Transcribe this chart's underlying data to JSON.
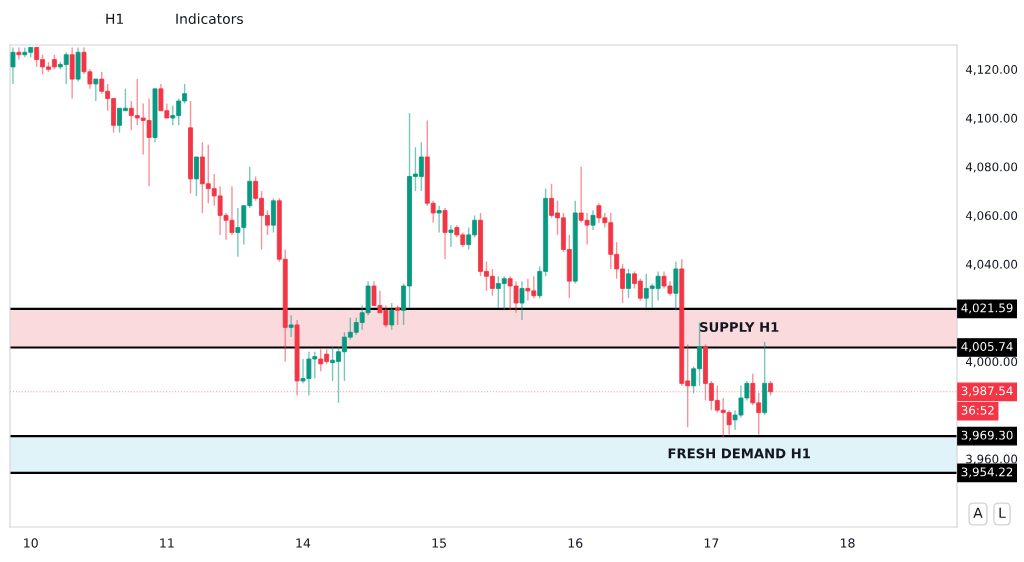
{
  "chart_data": {
    "type": "candlestick",
    "categories": [
      null,
      null,
      null,
      "10",
      null,
      null,
      null,
      null,
      null,
      null,
      null,
      null,
      null,
      null,
      null,
      null,
      null,
      null,
      null,
      null,
      null,
      null,
      null,
      null,
      null,
      null,
      "11",
      null,
      null,
      null,
      null,
      null,
      null,
      null,
      null,
      null,
      null,
      null,
      null,
      null,
      null,
      null,
      null,
      null,
      null,
      null,
      null,
      null,
      null,
      "14",
      null,
      null,
      null,
      null,
      null,
      null,
      null,
      null,
      null,
      null,
      null,
      null,
      null,
      null,
      null,
      null,
      null,
      null,
      null,
      null,
      null,
      null,
      "15",
      null,
      null,
      null,
      null,
      null,
      null,
      null,
      null,
      null,
      null,
      null,
      null,
      null,
      null,
      null,
      null,
      null,
      null,
      null,
      null,
      null,
      null,
      "16",
      null,
      null,
      null,
      null,
      null,
      null,
      null,
      null,
      null,
      null,
      null,
      null,
      null,
      null,
      null,
      null,
      null,
      null,
      null,
      null,
      null,
      null,
      "17",
      null,
      null,
      null,
      null,
      null,
      null,
      null,
      null,
      null,
      null,
      null,
      null,
      null,
      null,
      null,
      null,
      null,
      null,
      null,
      null,
      null,
      null,
      "18",
      null,
      null,
      null,
      null,
      null,
      null,
      null,
      null,
      null,
      null,
      null,
      null,
      null,
      null,
      null,
      null,
      null,
      null
    ],
    "ohlc": [
      [
        4121,
        4129,
        4114,
        4127
      ],
      [
        4127,
        4129,
        4124,
        4126
      ],
      [
        4126,
        4129,
        4125,
        4127
      ],
      [
        4127,
        4129,
        4125,
        4129
      ],
      [
        4129,
        4129,
        4121,
        4124
      ],
      [
        4124,
        4126,
        4118,
        4121
      ],
      [
        4121,
        4123,
        4119,
        4120
      ],
      [
        4124,
        4126,
        4120,
        4121
      ],
      [
        4121,
        4123,
        4120,
        4122
      ],
      [
        4122,
        4127,
        4114,
        4126
      ],
      [
        4126,
        4129,
        4108,
        4116
      ],
      [
        4116,
        4129,
        4115,
        4127
      ],
      [
        4127,
        4129,
        4118,
        4119
      ],
      [
        4119,
        4120,
        4112,
        4114
      ],
      [
        4114,
        4116,
        4107,
        4116
      ],
      [
        4116,
        4119,
        4110,
        4111
      ],
      [
        4111,
        4114,
        4103,
        4108
      ],
      [
        4108,
        4108,
        4094,
        4097
      ],
      [
        4097,
        4104,
        4094,
        4104
      ],
      [
        4103,
        4112,
        4103,
        4104
      ],
      [
        4104,
        4107,
        4095,
        4101
      ],
      [
        4101,
        4116,
        4097,
        4100
      ],
      [
        4100,
        4106,
        4085,
        4099
      ],
      [
        4099,
        4108,
        4072,
        4092
      ],
      [
        4092,
        4112,
        4090,
        4112
      ],
      [
        4112,
        4114,
        4103,
        4103
      ],
      [
        4103,
        4106,
        4100,
        4100
      ],
      [
        4100,
        4105,
        4097,
        4101
      ],
      [
        4101,
        4108,
        4097,
        4107
      ],
      [
        4107,
        4114,
        4106,
        4110
      ],
      [
        4096,
        4107,
        4069,
        4075
      ],
      [
        4075,
        4084,
        4068,
        4084
      ],
      [
        4084,
        4090,
        4061,
        4073
      ],
      [
        4073,
        4089,
        4065,
        4071
      ],
      [
        4071,
        4077,
        4064,
        4068
      ],
      [
        4068,
        4072,
        4052,
        4060
      ],
      [
        4060,
        4061,
        4050,
        4058
      ],
      [
        4058,
        4072,
        4052,
        4053
      ],
      [
        4053,
        4063,
        4043,
        4055
      ],
      [
        4055,
        4064,
        4048,
        4064
      ],
      [
        4064,
        4080,
        4063,
        4074
      ],
      [
        4074,
        4076,
        4066,
        4067
      ],
      [
        4067,
        4070,
        4046,
        4060
      ],
      [
        4060,
        4062,
        4052,
        4056
      ],
      [
        4056,
        4067,
        4053,
        4066
      ],
      [
        4066,
        4067,
        4041,
        4042
      ],
      [
        4042,
        4046,
        4000,
        4014
      ],
      [
        4014,
        4019,
        4010,
        4015
      ],
      [
        4015,
        4017,
        3986,
        3992
      ],
      [
        3992,
        4001,
        3991,
        3993
      ],
      [
        3993,
        4004,
        3986,
        4001
      ],
      [
        4001,
        4004,
        3993,
        4002
      ],
      [
        4001,
        4005,
        3996,
        3999
      ],
      [
        4003,
        4005,
        3999,
        4000
      ],
      [
        3999.5,
        4006,
        3992,
        4000.5
      ],
      [
        4000,
        4006,
        3983,
        4004
      ],
      [
        4004,
        4012,
        3992,
        4010
      ],
      [
        4010,
        4018,
        4009,
        4012
      ],
      [
        4012,
        4018,
        4011,
        4016
      ],
      [
        4016,
        4023,
        4013,
        4020
      ],
      [
        4020,
        4033,
        4019,
        4031
      ],
      [
        4031,
        4033,
        4023,
        4023
      ],
      [
        4023,
        4029,
        4020,
        4020
      ],
      [
        4021,
        4023,
        4014,
        4015
      ],
      [
        4015,
        4024,
        4013,
        4021
      ],
      [
        4022,
        4023,
        4015,
        4021
      ],
      [
        4021,
        4032,
        4015,
        4031
      ],
      [
        4031,
        4102,
        4022,
        4076
      ],
      [
        4076,
        4088,
        4070,
        4077
      ],
      [
        4076,
        4090,
        4070,
        4084
      ],
      [
        4084,
        4099,
        4064,
        4065
      ],
      [
        4065,
        4066,
        4057,
        4061
      ],
      [
        4061,
        4064,
        4053,
        4062
      ],
      [
        4062,
        4063,
        4042,
        4053
      ],
      [
        4053,
        4056,
        4047,
        4054
      ],
      [
        4055,
        4056,
        4051,
        4052
      ],
      [
        4052,
        4053,
        4047,
        4048
      ],
      [
        4048,
        4055,
        4046,
        4052
      ],
      [
        4052,
        4060,
        4051,
        4058
      ],
      [
        4058,
        4061,
        4035,
        4037
      ],
      [
        4037,
        4041,
        4029,
        4035
      ],
      [
        4035,
        4038,
        4027,
        4030
      ],
      [
        4030,
        4035,
        4022,
        4032
      ],
      [
        4032,
        4035,
        4021,
        4034
      ],
      [
        4034,
        4035,
        4021,
        4031
      ],
      [
        4031,
        4033,
        4020,
        4024
      ],
      [
        4024,
        4033,
        4017,
        4030
      ],
      [
        4030,
        4034,
        4025,
        4029
      ],
      [
        4029,
        4035,
        4026,
        4027
      ],
      [
        4027,
        4039,
        4026,
        4037
      ],
      [
        4037,
        4071,
        4035,
        4067
      ],
      [
        4067,
        4073,
        4059,
        4060
      ],
      [
        4061,
        4066,
        4052,
        4059
      ],
      [
        4059,
        4061,
        4045,
        4046
      ],
      [
        4046,
        4052,
        4026,
        4033
      ],
      [
        4033,
        4066,
        4032,
        4061
      ],
      [
        4061,
        4080,
        4057,
        4058
      ],
      [
        4058,
        4061,
        4048,
        4056
      ],
      [
        4056,
        4062,
        4054,
        4060
      ],
      [
        4064,
        4065,
        4057,
        4059
      ],
      [
        4059,
        4061,
        4055,
        4057
      ],
      [
        4057,
        4061,
        4038,
        4044
      ],
      [
        4044,
        4049,
        4034,
        4038
      ],
      [
        4038,
        4040,
        4024,
        4030
      ],
      [
        4030,
        4038,
        4026,
        4036
      ],
      [
        4036,
        4037,
        4030,
        4032
      ],
      [
        4033,
        4034,
        4025,
        4026
      ],
      [
        4026,
        4036,
        4022,
        4030
      ],
      [
        4030,
        4032,
        4022,
        4031
      ],
      [
        4030,
        4037,
        4025,
        4035
      ],
      [
        4035,
        4037,
        4030,
        4031
      ],
      [
        4031,
        4033,
        4027,
        4028
      ],
      [
        4028,
        4041,
        4021,
        4038
      ],
      [
        4038,
        4042,
        3990,
        3991
      ],
      [
        3992,
        4007,
        3973,
        3990
      ],
      [
        3990,
        3998,
        3987,
        3997
      ],
      [
        3997,
        4016,
        3990,
        4006
      ],
      [
        4006,
        4007,
        3984,
        3991
      ],
      [
        3991,
        3992,
        3980,
        3984
      ],
      [
        3984,
        3990,
        3979,
        3980
      ],
      [
        3980,
        3985,
        3969,
        3979
      ],
      [
        3979,
        3980,
        3970,
        3974
      ],
      [
        3976,
        3980,
        3972,
        3978
      ],
      [
        3978,
        3990,
        3977,
        3985
      ],
      [
        3985,
        3992,
        3984,
        3991
      ],
      [
        3991,
        3995,
        3982,
        3983
      ],
      [
        3983,
        3987,
        3970,
        3979
      ],
      [
        3979,
        4008,
        3978,
        3991
      ],
      [
        3991,
        3992,
        3986,
        3987.54
      ],
      null,
      null,
      null,
      null,
      null,
      null,
      null,
      null,
      null,
      null,
      null,
      null,
      null,
      null,
      null,
      null,
      null,
      null,
      null,
      null,
      null,
      null,
      null,
      null,
      null,
      null,
      null,
      null,
      null,
      null,
      null
    ],
    "ylim": [
      3932,
      4130
    ],
    "yticks": [
      {
        "value": 4120,
        "label": "4,120.00"
      },
      {
        "value": 4100,
        "label": "4,100.00"
      },
      {
        "value": 4080,
        "label": "4,080.00"
      },
      {
        "value": 4060,
        "label": "4,060.00"
      },
      {
        "value": 4040,
        "label": "4,040.00"
      },
      {
        "value": 4000,
        "label": "4,000.00"
      },
      {
        "value": 3960,
        "label": "3,960.00"
      }
    ],
    "bands": [
      {
        "axis": "y",
        "from": 4005.74,
        "to": 4021.59,
        "label": "SUPPLY H1",
        "color": "#fadadd"
      },
      {
        "axis": "y",
        "from": 3954.22,
        "to": 3969.3,
        "label": "FRESH DEMAND H1",
        "color": "#dff3f8"
      }
    ],
    "ref_lines": [
      {
        "axis": "y",
        "value": 4021.59,
        "label": "4,021.59",
        "color": "#000000",
        "line_style": "solid"
      },
      {
        "axis": "y",
        "value": 4005.74,
        "label": "4,005.74",
        "color": "#000000",
        "line_style": "solid"
      },
      {
        "axis": "y",
        "value": 3987.54,
        "label": "3,987.54",
        "color": "#f23645",
        "line_style": "dotted"
      },
      {
        "axis": "y",
        "value": 3969.3,
        "label": "3,969.30",
        "color": "#000000",
        "line_style": "solid"
      },
      {
        "axis": "y",
        "value": 3954.22,
        "label": "3,954.22",
        "color": "#000000",
        "line_style": "solid"
      }
    ],
    "annotations": [
      "H1",
      "Indicators",
      "36:52",
      "A",
      "L"
    ]
  }
}
